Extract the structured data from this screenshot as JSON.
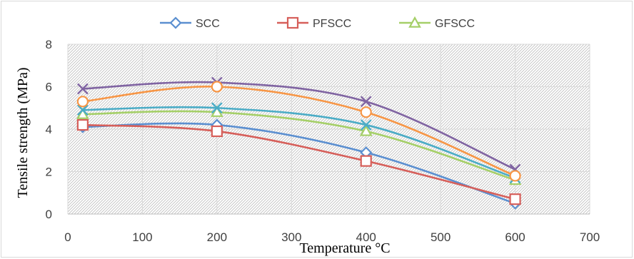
{
  "chart_data": {
    "type": "line",
    "title": "",
    "xlabel": "Temperature °C",
    "ylabel": "Tensile strength (MPa)",
    "xlim": [
      0,
      700
    ],
    "ylim": [
      0,
      8
    ],
    "x_ticks": [
      0,
      100,
      200,
      300,
      400,
      500,
      600,
      700
    ],
    "y_ticks": [
      0,
      2,
      4,
      6,
      8
    ],
    "grid": true,
    "smooth": true,
    "legend_position": "top",
    "series": [
      {
        "name": "SCC",
        "color": "#5b8fd0",
        "marker": "diamond",
        "x": [
          20,
          200,
          400,
          600
        ],
        "y": [
          4.1,
          4.2,
          2.9,
          0.5
        ]
      },
      {
        "name": "PFSCC",
        "color": "#d65f5a",
        "marker": "square",
        "x": [
          20,
          200,
          400,
          600
        ],
        "y": [
          4.2,
          3.9,
          2.5,
          0.7
        ]
      },
      {
        "name": "GFSCC",
        "color": "#a5cf68",
        "marker": "triangle",
        "x": [
          20,
          200,
          400,
          600
        ],
        "y": [
          4.7,
          4.8,
          3.9,
          1.6
        ]
      },
      {
        "name": "",
        "color": "#4bacc6",
        "marker": "x",
        "x": [
          20,
          200,
          400,
          600
        ],
        "y": [
          4.9,
          5.0,
          4.2,
          1.7
        ]
      },
      {
        "name": "",
        "color": "#8064a2",
        "marker": "x",
        "x": [
          20,
          200,
          400,
          600
        ],
        "y": [
          5.9,
          6.2,
          5.3,
          2.1
        ]
      },
      {
        "name": "",
        "color": "#f79646",
        "marker": "circle",
        "x": [
          20,
          200,
          400,
          600
        ],
        "y": [
          5.3,
          6.0,
          4.8,
          1.8
        ]
      }
    ]
  }
}
